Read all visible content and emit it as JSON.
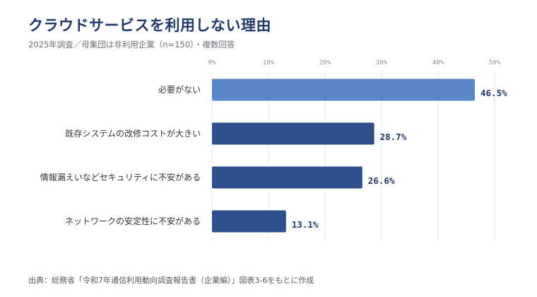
{
  "header": {
    "title": "クラウドサービスを利用しない理由",
    "subtitle": "2025年調査／母集団は非利用企業（n=150）・複数回答"
  },
  "footer": {
    "source": "出典：総務省「令和7年通信利用動向調査報告書（企業編）」図表3-6をもとに作成"
  },
  "colors": {
    "highlight_bar": "#5b86c8",
    "bar": "#2d4f8e",
    "grid": "#e6e8eb",
    "value_text": "#1f3a6b"
  },
  "chart_data": {
    "type": "bar",
    "orientation": "horizontal",
    "categories": [
      "必要がない",
      "既存システムの改修コストが大きい",
      "情報漏えいなどセキュリティに不安がある",
      "ネットワークの安定性に不安がある"
    ],
    "values": [
      46.5,
      28.7,
      26.6,
      13.1
    ],
    "value_labels": [
      "46.5%",
      "28.7%",
      "26.6%",
      "13.1%"
    ],
    "highlight_index": 0,
    "xlim": [
      0,
      50
    ],
    "xticks": [
      0,
      10,
      20,
      30,
      40,
      50
    ],
    "xtick_labels": [
      "0%",
      "10%",
      "20%",
      "30%",
      "40%",
      "50%"
    ],
    "xaxis_position": "top",
    "grid": true,
    "legend": "none"
  }
}
